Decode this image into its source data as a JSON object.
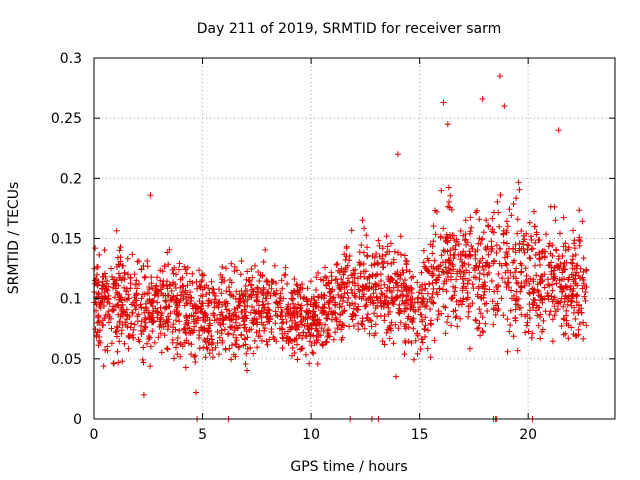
{
  "chart_data": {
    "type": "scatter",
    "title": "Day 211 of 2019, SRMTID for receiver sarm",
    "xlabel": "GPS time / hours",
    "ylabel": "SRMTID / TECUs",
    "xlim": [
      0,
      24
    ],
    "ylim": [
      0,
      0.3
    ],
    "x_ticks": [
      0,
      5,
      10,
      15,
      20
    ],
    "x_tick_labels": [
      "0",
      "5",
      "10",
      "15",
      "20"
    ],
    "y_ticks": [
      0,
      0.05,
      0.1,
      0.15,
      0.2,
      0.25,
      0.3
    ],
    "y_tick_labels": [
      "0",
      "0.05",
      "0.1",
      "0.15",
      "0.2",
      "0.25",
      "0.3"
    ],
    "grid": true,
    "marker": "+",
    "color": "#e00000",
    "series": [
      {
        "name": "SRMTID",
        "x_range": [
          0,
          22.7
        ],
        "trend": [
          {
            "x": 0.0,
            "mean": 0.1,
            "spread": 0.035
          },
          {
            "x": 2.0,
            "mean": 0.095,
            "spread": 0.035
          },
          {
            "x": 4.0,
            "mean": 0.09,
            "spread": 0.03
          },
          {
            "x": 6.0,
            "mean": 0.085,
            "spread": 0.03
          },
          {
            "x": 8.0,
            "mean": 0.095,
            "spread": 0.032
          },
          {
            "x": 10.0,
            "mean": 0.08,
            "spread": 0.025
          },
          {
            "x": 12.0,
            "mean": 0.11,
            "spread": 0.035
          },
          {
            "x": 14.0,
            "mean": 0.105,
            "spread": 0.04
          },
          {
            "x": 15.0,
            "mean": 0.09,
            "spread": 0.03
          },
          {
            "x": 16.0,
            "mean": 0.135,
            "spread": 0.045
          },
          {
            "x": 17.0,
            "mean": 0.12,
            "spread": 0.045
          },
          {
            "x": 18.5,
            "mean": 0.13,
            "spread": 0.05
          },
          {
            "x": 20.0,
            "mean": 0.12,
            "spread": 0.045
          },
          {
            "x": 22.7,
            "mean": 0.11,
            "spread": 0.04
          }
        ],
        "notable_points": [
          {
            "x": 18.7,
            "y": 0.285
          },
          {
            "x": 17.9,
            "y": 0.266
          },
          {
            "x": 16.1,
            "y": 0.263
          },
          {
            "x": 18.9,
            "y": 0.26
          },
          {
            "x": 16.3,
            "y": 0.245
          },
          {
            "x": 21.4,
            "y": 0.24
          },
          {
            "x": 14.0,
            "y": 0.22
          },
          {
            "x": 2.6,
            "y": 0.186
          },
          {
            "x": 2.3,
            "y": 0.02
          },
          {
            "x": 4.7,
            "y": 0.022
          }
        ]
      },
      {
        "name": "zero-value markers",
        "x": [
          4.75,
          6.2,
          11.8,
          12.8,
          13.1,
          18.4,
          18.5,
          18.55,
          20.2
        ],
        "y": [
          0,
          0,
          0,
          0,
          0,
          0,
          0,
          0,
          0
        ]
      }
    ]
  }
}
